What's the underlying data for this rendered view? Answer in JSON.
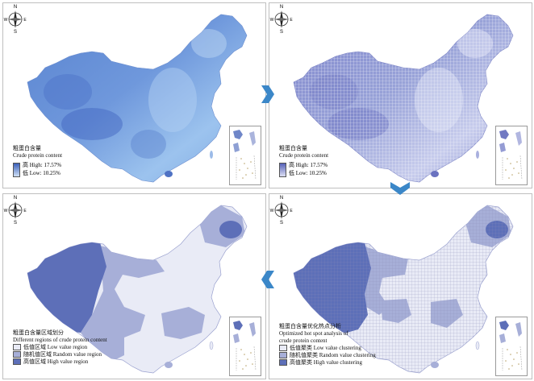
{
  "compass": {
    "n": "N",
    "s": "S",
    "w": "W",
    "e": "E"
  },
  "panels": {
    "p1": {
      "title_cn": "粗蛋白含量",
      "title_en": "Crude protein content",
      "high": "高 High: 17.57%",
      "low": "低 Low: 10.25%"
    },
    "p2": {
      "title_cn": "粗蛋白含量",
      "title_en": "Crude protein content",
      "high": "高 High: 17.57%",
      "low": "低 Low: 10.25%"
    },
    "p3": {
      "title_cn": "粗蛋白含量区域划分",
      "title_en": "Different regions of crude protein content",
      "items": [
        "低值区域 Low value region",
        "随机值区域 Random value region",
        "高值区域 High value region"
      ]
    },
    "p4": {
      "title_cn": "粗蛋白含量优化热点分析",
      "title_en1": "Optimized hot spot analysis of",
      "title_en2": "crude protein content",
      "items": [
        "低值聚类 Low value clustering",
        "随机值聚类 Random value clustering",
        "高值聚类 High value clustering"
      ]
    }
  },
  "colors": {
    "low": "#e9ebf6",
    "random": "#a7afd8",
    "high": "#5d6fb8",
    "arrow": "#3b87c8",
    "map_light": "#9cc3ee",
    "map_dark": "#4f78c9"
  }
}
